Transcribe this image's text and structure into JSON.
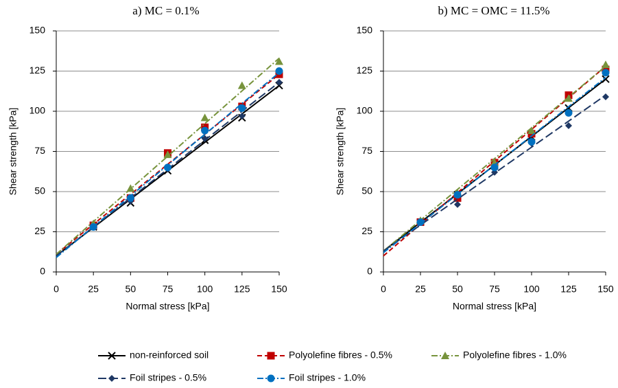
{
  "chart_data": [
    {
      "type": "line",
      "title": "a) MC = 0.1%",
      "x_label": "Normal stress [kPa]",
      "y_label": "Shear strength [kPa]",
      "x": [
        25,
        50,
        75,
        100,
        125,
        150
      ],
      "xlim": [
        0,
        150
      ],
      "xticks": [
        0,
        25,
        50,
        75,
        100,
        125,
        150
      ],
      "ylim": [
        0,
        150
      ],
      "yticks": [
        0,
        25,
        50,
        75,
        100,
        125,
        150
      ],
      "grid": true,
      "series": [
        {
          "name": "non-reinforced soil",
          "color": "#000000",
          "marker": "x",
          "dash": "solid",
          "values": [
            28,
            43,
            63,
            82,
            96,
            116
          ],
          "trend": [
            10,
            116
          ]
        },
        {
          "name": "Polyolefine fibres - 0.5%",
          "color": "#c00000",
          "marker": "square",
          "dash": "dash",
          "values": [
            29,
            46,
            74,
            90,
            103,
            123
          ],
          "trend": [
            11,
            123
          ]
        },
        {
          "name": "Polyolefine fibres - 1.0%",
          "color": "#77933c",
          "marker": "triangle",
          "dash": "dashdot",
          "values": [
            30,
            52,
            73,
            96,
            116,
            131
          ],
          "trend": [
            11,
            133
          ]
        },
        {
          "name": "Foil stripes - 0.5%",
          "color": "#1f3864",
          "marker": "diamond",
          "dash": "longdash",
          "values": [
            28,
            44,
            64,
            83,
            97,
            118
          ],
          "trend": [
            10,
            118
          ]
        },
        {
          "name": "Foil stripes - 1.0%",
          "color": "#0070c0",
          "marker": "circle",
          "dash": "dashdot",
          "values": [
            28,
            46,
            65,
            88,
            102,
            125
          ],
          "trend": [
            9,
            124
          ]
        }
      ]
    },
    {
      "type": "line",
      "title": "b) MC = OMC = 11.5%",
      "x_label": "Normal stress [kPa]",
      "y_label": "Shear strength [kPa]",
      "x": [
        25,
        50,
        75,
        100,
        125,
        150
      ],
      "xlim": [
        0,
        150
      ],
      "xticks": [
        0,
        25,
        50,
        75,
        100,
        125,
        150
      ],
      "ylim": [
        0,
        150
      ],
      "yticks": [
        0,
        25,
        50,
        75,
        100,
        125,
        150
      ],
      "grid": true,
      "series": [
        {
          "color": "#000000",
          "marker": "x",
          "dash": "solid",
          "values": [
            31,
            48,
            66,
            84,
            102,
            120
          ],
          "trend": [
            13,
            120
          ]
        },
        {
          "color": "#c00000",
          "marker": "square",
          "dash": "dash",
          "values": [
            31,
            46,
            68,
            86,
            110,
            126
          ],
          "trend": [
            10,
            128
          ]
        },
        {
          "color": "#77933c",
          "marker": "triangle",
          "dash": "dashdot",
          "values": [
            32,
            49,
            68,
            88,
            108,
            129
          ],
          "trend": [
            13,
            128
          ]
        },
        {
          "color": "#1f3864",
          "marker": "diamond",
          "dash": "longdash",
          "values": [
            31,
            42,
            62,
            80,
            91,
            109
          ],
          "trend": [
            13,
            110
          ]
        },
        {
          "color": "#0070c0",
          "marker": "circle",
          "dash": "dashdot",
          "values": [
            31,
            48,
            65,
            81,
            99,
            124
          ],
          "trend": [
            12,
            121
          ]
        }
      ]
    }
  ]
}
